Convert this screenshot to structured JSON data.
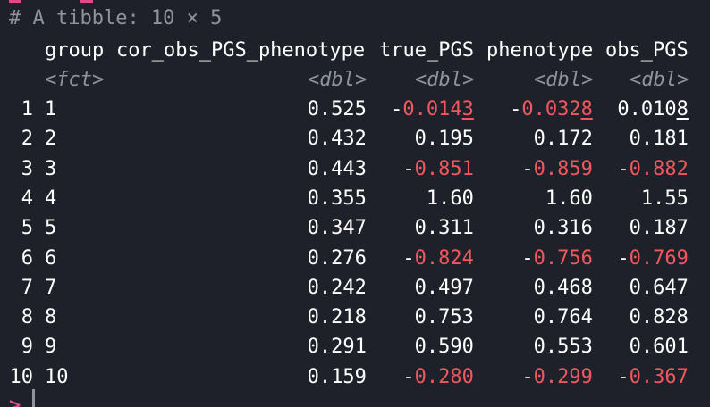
{
  "console": {
    "tibble_header": "# A tibble: 10 × 5",
    "columns": [
      {
        "name": "group",
        "type": "<fct>"
      },
      {
        "name": "cor_obs_PGS_phenotype",
        "type": "<dbl>"
      },
      {
        "name": "true_PGS",
        "type": "<dbl>"
      },
      {
        "name": "phenotype",
        "type": "<dbl>"
      },
      {
        "name": "obs_PGS",
        "type": "<dbl>"
      }
    ],
    "rows": [
      {
        "n": "1",
        "group": "1",
        "cor": "0.525",
        "true_PGS": "-0.0143",
        "phenotype": "-0.0328",
        "obs_PGS": "0.0108"
      },
      {
        "n": "2",
        "group": "2",
        "cor": "0.432",
        "true_PGS": "0.195",
        "phenotype": "0.172",
        "obs_PGS": "0.181"
      },
      {
        "n": "3",
        "group": "3",
        "cor": "0.443",
        "true_PGS": "-0.851",
        "phenotype": "-0.859",
        "obs_PGS": "-0.882"
      },
      {
        "n": "4",
        "group": "4",
        "cor": "0.355",
        "true_PGS": "1.60",
        "phenotype": "1.60",
        "obs_PGS": "1.55"
      },
      {
        "n": "5",
        "group": "5",
        "cor": "0.347",
        "true_PGS": "0.311",
        "phenotype": "0.316",
        "obs_PGS": "0.187"
      },
      {
        "n": "6",
        "group": "6",
        "cor": "0.276",
        "true_PGS": "-0.824",
        "phenotype": "-0.756",
        "obs_PGS": "-0.769"
      },
      {
        "n": "7",
        "group": "7",
        "cor": "0.242",
        "true_PGS": "0.497",
        "phenotype": "0.468",
        "obs_PGS": "0.647"
      },
      {
        "n": "8",
        "group": "8",
        "cor": "0.218",
        "true_PGS": "0.753",
        "phenotype": "0.764",
        "obs_PGS": "0.828"
      },
      {
        "n": "9",
        "group": "9",
        "cor": "0.291",
        "true_PGS": "0.590",
        "phenotype": "0.553",
        "obs_PGS": "0.601"
      },
      {
        "n": "10",
        "group": "10",
        "cor": "0.159",
        "true_PGS": "-0.280",
        "phenotype": "-0.299",
        "obs_PGS": "-0.367"
      }
    ],
    "prompt": ">"
  },
  "colors": {
    "background": "#1e2129",
    "text": "#ffffff",
    "muted": "#8f939b",
    "negative": "#f0575f",
    "prompt": "#e04a8a"
  }
}
